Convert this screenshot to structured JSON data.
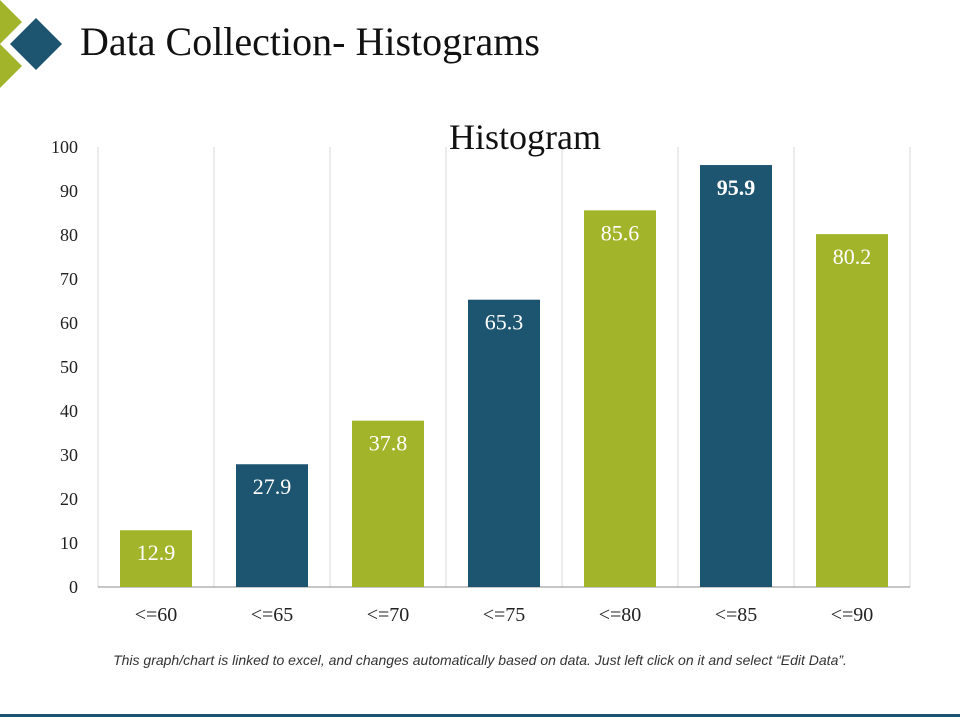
{
  "slide": {
    "title": "Data Collection- Histograms",
    "footnote": "This graph/chart is linked to excel, and changes automatically based on data. Just left click on it and select “Edit Data”."
  },
  "colors": {
    "green": "#a2b52a",
    "navy": "#1d5571",
    "logo_green": "#a2b52a",
    "logo_navy": "#1d5571"
  },
  "chart_data": {
    "type": "bar",
    "title": "Histogram",
    "categories": [
      "<=60",
      "<=65",
      "<=70",
      "<=75",
      "<=80",
      "<=85",
      "<=90"
    ],
    "values": [
      12.9,
      27.9,
      37.8,
      65.3,
      85.6,
      95.9,
      80.2
    ],
    "value_labels": [
      "12.9",
      "27.9",
      "37.8",
      "65.3",
      "85.6",
      "95.9",
      "80.2"
    ],
    "bar_colors": [
      "green",
      "navy",
      "green",
      "navy",
      "green",
      "navy",
      "green"
    ],
    "ylim": [
      0,
      100
    ],
    "yticks": [
      0,
      10,
      20,
      30,
      40,
      50,
      60,
      70,
      80,
      90,
      100
    ],
    "xlabel": "",
    "ylabel": "",
    "grid": "vertical"
  }
}
